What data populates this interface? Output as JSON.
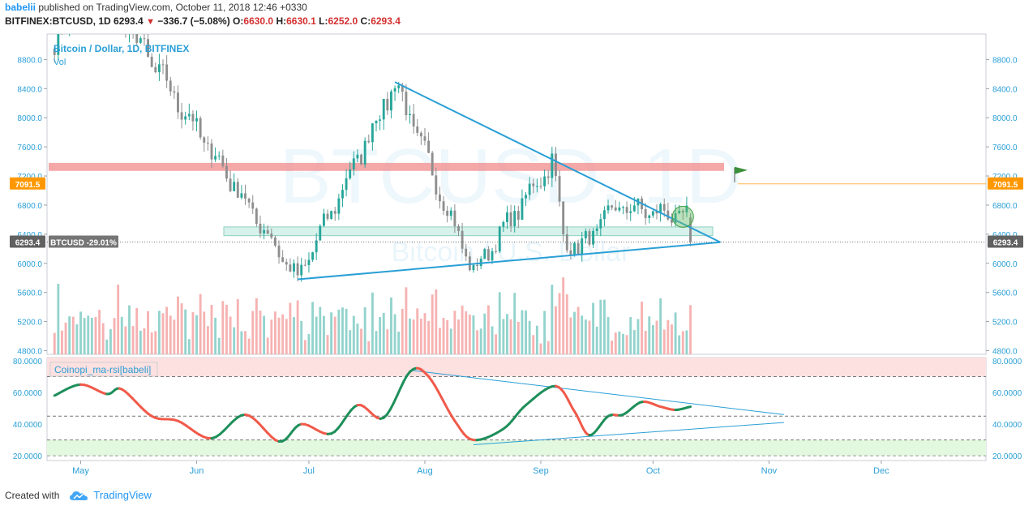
{
  "header": {
    "author": "babelii",
    "published_text": "published on TradingView.com, October 11, 2018 12:46 +0330",
    "symbol": "BITFINEX:BTCUSD, 1D",
    "last": "6293.4",
    "change": "−336.7 (−5.08%)",
    "open_label": "O:",
    "open": "6630.0",
    "high_label": "H:",
    "high": "6630.1",
    "low_label": "L:",
    "low": "6252.0",
    "close_label": "C:",
    "close": "6293.4"
  },
  "footer": {
    "created_with": "Created with",
    "brand": "TradingView"
  },
  "chart_data": [
    {
      "type": "candlestick",
      "title": "Bitcoin / Dollar, 1D, BITFINEX",
      "subtitle": "Vol",
      "watermark_main": "BTCUSD, 1D",
      "watermark_sub": "Bitcoin / U.S. Dollar",
      "x_labels": [
        "May",
        "Jun",
        "Jul",
        "Aug",
        "Sep",
        "Oct",
        "Nov",
        "Dec"
      ],
      "y_ticks": [
        "8800.0",
        "8400.0",
        "8000.0",
        "7600.0",
        "7200.0",
        "6800.0",
        "6400.0",
        "6000.0",
        "5600.0",
        "5200.0",
        "4800.0"
      ],
      "ylim": [
        4750,
        9150
      ],
      "price_badge": "6293.4",
      "price_badge_value": 6293.4,
      "change_badge": "BTCUSD -29.01%",
      "hline_badge": "7091.5",
      "hline_value": 7091.5,
      "resistance_zone": [
        7270,
        7380
      ],
      "support_zone": [
        6380,
        6500
      ],
      "colors": {
        "up": "#26a69a",
        "down": "#ef5350",
        "line": "#2a9fd6",
        "badge": "#ff9800"
      },
      "key_points": [
        {
          "date": "2018-04-24",
          "price": 9020
        },
        {
          "date": "2018-05-05",
          "price": 9900
        },
        {
          "date": "2018-06-28",
          "price": 5780
        },
        {
          "date": "2018-07-24",
          "price": 8490
        },
        {
          "date": "2018-08-14",
          "price": 5880
        },
        {
          "date": "2018-09-04",
          "price": 7410
        },
        {
          "date": "2018-09-07",
          "price": 6390
        },
        {
          "date": "2018-09-11",
          "price": 6170
        },
        {
          "date": "2018-09-21",
          "price": 6780
        },
        {
          "date": "2018-10-10",
          "price": 6630
        },
        {
          "date": "2018-10-11",
          "price": 6293
        }
      ],
      "trendlines": [
        {
          "from": {
            "date": "2018-07-24",
            "price": 8490
          },
          "to": {
            "date": "2018-10-19",
            "price": 6290
          }
        },
        {
          "from": {
            "date": "2018-06-28",
            "price": 5780
          },
          "to": {
            "date": "2018-10-19",
            "price": 6290
          }
        }
      ]
    },
    {
      "type": "line",
      "title": "Coinopi_ma-rsi[babeli]",
      "y_ticks": [
        "80.0000",
        "60.0000",
        "40.0000",
        "20.0000"
      ],
      "ylim": [
        17,
        82
      ],
      "levels": [
        70,
        45,
        30
      ],
      "bands": {
        "overbought": [
          70,
          82
        ],
        "oversold": [
          20,
          30
        ]
      },
      "points": [
        {
          "date": "2018-04-24",
          "value": 58
        },
        {
          "date": "2018-05-01",
          "value": 65
        },
        {
          "date": "2018-05-08",
          "value": 59
        },
        {
          "date": "2018-05-12",
          "value": 62
        },
        {
          "date": "2018-05-20",
          "value": 45
        },
        {
          "date": "2018-05-27",
          "value": 42
        },
        {
          "date": "2018-06-05",
          "value": 31
        },
        {
          "date": "2018-06-14",
          "value": 46
        },
        {
          "date": "2018-06-23",
          "value": 29
        },
        {
          "date": "2018-06-29",
          "value": 40
        },
        {
          "date": "2018-07-07",
          "value": 34
        },
        {
          "date": "2018-07-14",
          "value": 52
        },
        {
          "date": "2018-07-21",
          "value": 44
        },
        {
          "date": "2018-07-28",
          "value": 73
        },
        {
          "date": "2018-08-02",
          "value": 70
        },
        {
          "date": "2018-08-09",
          "value": 42
        },
        {
          "date": "2018-08-14",
          "value": 30
        },
        {
          "date": "2018-08-22",
          "value": 37
        },
        {
          "date": "2018-08-28",
          "value": 52
        },
        {
          "date": "2018-09-05",
          "value": 64
        },
        {
          "date": "2018-09-10",
          "value": 48
        },
        {
          "date": "2018-09-14",
          "value": 33
        },
        {
          "date": "2018-09-19",
          "value": 45
        },
        {
          "date": "2018-09-23",
          "value": 46
        },
        {
          "date": "2018-09-28",
          "value": 54
        },
        {
          "date": "2018-10-03",
          "value": 51
        },
        {
          "date": "2018-10-07",
          "value": 49
        },
        {
          "date": "2018-10-11",
          "value": 51
        }
      ],
      "trendlines": [
        {
          "from": {
            "date": "2018-07-28",
            "value": 74
          },
          "to": {
            "date": "2018-11-05",
            "value": 46
          }
        },
        {
          "from": {
            "date": "2018-08-14",
            "value": 27
          },
          "to": {
            "date": "2018-11-05",
            "value": 41
          }
        }
      ]
    }
  ]
}
